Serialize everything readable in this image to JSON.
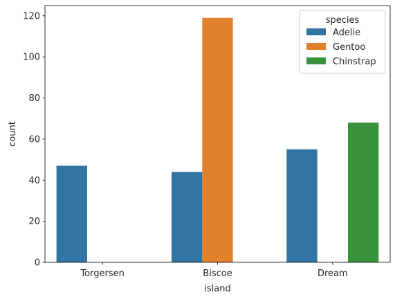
{
  "chart_data": {
    "type": "bar",
    "xlabel": "island",
    "ylabel": "count",
    "categories": [
      "Torgersen",
      "Biscoe",
      "Dream"
    ],
    "ylim": [
      0,
      125
    ],
    "yticks": [
      0,
      20,
      40,
      60,
      80,
      100,
      120
    ],
    "grid": false,
    "legend": {
      "title": "species",
      "placement": "top-right"
    },
    "series": [
      {
        "name": "Adelie",
        "color": "#3274a1",
        "values": [
          47,
          44,
          55
        ]
      },
      {
        "name": "Gentoo",
        "color": "#e1812c",
        "values": [
          0,
          119,
          0
        ]
      },
      {
        "name": "Chinstrap",
        "color": "#3a923a",
        "values": [
          0,
          0,
          68
        ]
      }
    ]
  }
}
